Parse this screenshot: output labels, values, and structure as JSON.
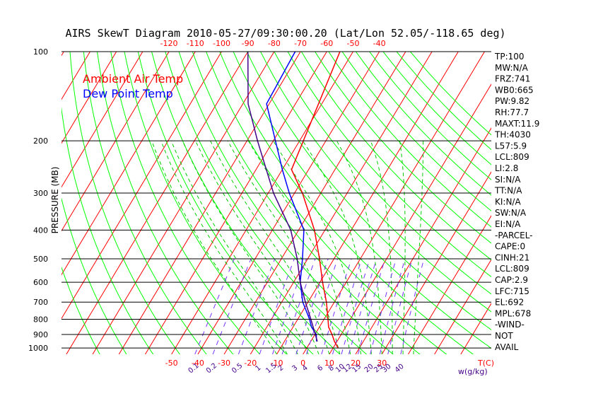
{
  "chart_data": {
    "type": "line",
    "title": "AIRS SkewT Diagram 2010-05-27/09:30:00.20 (Lat/Lon 52.05/-118.65 deg)",
    "ylabel": "PRESSURE (MB)",
    "xlabel_right": "T(C)",
    "mixing_label": "w(g/kg)",
    "legend": {
      "air": "Ambient Air Temp",
      "dew": "Dew Point Temp"
    },
    "yticks": [
      100,
      200,
      300,
      400,
      500,
      600,
      700,
      800,
      900,
      1000
    ],
    "ylim": [
      1050,
      100
    ],
    "xticks_bottom": [
      -50,
      -40,
      -30,
      -20,
      -10,
      0,
      10,
      20,
      30
    ],
    "xticks_top": [
      -120,
      -110,
      -100,
      -90,
      -80,
      -70,
      -60,
      -50,
      -40
    ],
    "mixing_ratios": [
      "0.1",
      "0.2",
      "0.5",
      "1",
      "1.5",
      "2",
      "3",
      "4",
      "6",
      "8",
      "10",
      "12",
      "15",
      "20",
      "25",
      "30",
      "40"
    ],
    "series": [
      {
        "name": "Ambient Air Temp",
        "color": "#ff0000",
        "points": [
          [
            1000,
            11.9
          ],
          [
            950,
            9
          ],
          [
            900,
            6.5
          ],
          [
            850,
            3.5
          ],
          [
            800,
            1.5
          ],
          [
            700,
            -3
          ],
          [
            600,
            -9
          ],
          [
            500,
            -15.5
          ],
          [
            400,
            -24
          ],
          [
            300,
            -37
          ],
          [
            250,
            -46.5
          ],
          [
            100,
            -55
          ]
        ]
      },
      {
        "name": "Dew Point Temp",
        "color": "#0000ff",
        "points": [
          [
            950,
            2.2
          ],
          [
            900,
            0.5
          ],
          [
            850,
            -3
          ],
          [
            800,
            -5.5
          ],
          [
            700,
            -12
          ],
          [
            600,
            -17.5
          ],
          [
            500,
            -22
          ],
          [
            400,
            -28
          ],
          [
            300,
            -42
          ],
          [
            250,
            -50
          ],
          [
            150,
            -71
          ],
          [
            100,
            -72
          ]
        ]
      },
      {
        "name": "parcel",
        "color": "#440088",
        "points": [
          [
            950,
            2.5
          ],
          [
            800,
            -5
          ],
          [
            700,
            -11
          ],
          [
            600,
            -17.5
          ],
          [
            500,
            -24
          ],
          [
            400,
            -33
          ],
          [
            300,
            -48
          ],
          [
            200,
            -66
          ],
          [
            150,
            -78
          ],
          [
            100,
            -90
          ]
        ]
      }
    ],
    "stats": [
      "TP:100",
      "MW:N/A",
      "FRZ:741",
      "WB0:665",
      "PW:9.82",
      "RH:77.7",
      "MAXT:11.9",
      "TH:4030",
      "L57:5.9",
      "LCL:809",
      "LI:2.8",
      "SI:N/A",
      "TT:N/A",
      "KI:N/A",
      "SW:N/A",
      "EI:N/A",
      "-PARCEL-",
      "CAPE:0",
      "CINH:21",
      "LCL:809",
      "CAP:2.9",
      "LFC:715",
      "EL:692",
      "MPL:678",
      "-WIND-",
      "NOT",
      "AVAIL"
    ],
    "colors": {
      "isotherm": "#ff0000",
      "dry_adiabat": "#00ff00",
      "moist_adiabat": "#00cc00",
      "mixing_ratio": "#7733ff",
      "axis_text": "#000000",
      "tick_text_bottom": "#ff0000",
      "tick_text_top": "#ff0000",
      "mixing_text": "#440088"
    }
  }
}
